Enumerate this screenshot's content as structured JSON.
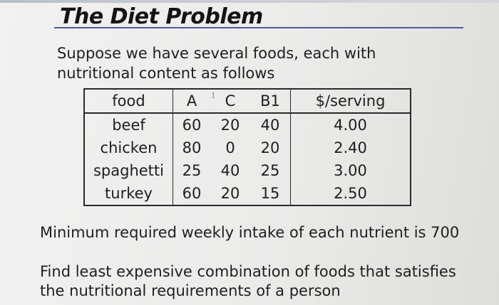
{
  "slide": {
    "title": "The Diet Problem",
    "intro": "Suppose we have several foods, each with nutritional content as follows",
    "cursor_marker": "I",
    "table": {
      "headers": [
        "food",
        "A",
        "C",
        "B1",
        "$/serving"
      ],
      "rows": [
        [
          "beef",
          "60",
          "20",
          "40",
          "4.00"
        ],
        [
          "chicken",
          "80",
          "0",
          "20",
          "2.40"
        ],
        [
          "spaghetti",
          "25",
          "40",
          "25",
          "3.00"
        ],
        [
          "turkey",
          "60",
          "20",
          "15",
          "2.50"
        ]
      ]
    },
    "minimum_text": "Minimum required weekly intake of each nutrient is 700",
    "find_text": "Find least expensive combination of foods that satisfies the nutritional requirements of a person"
  },
  "colors": {
    "title_rule": "#4d5a99",
    "text": "#1e1e1e",
    "background": "#ebebea"
  }
}
